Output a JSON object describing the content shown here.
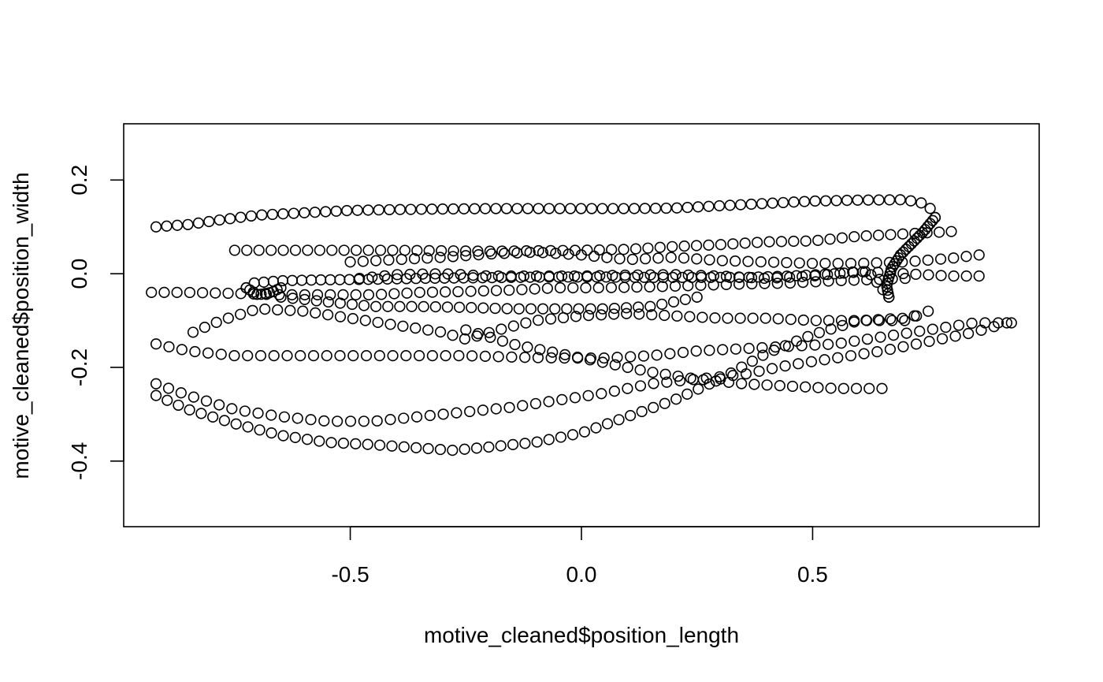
{
  "chart_data": {
    "type": "scatter",
    "title": "",
    "xlabel": "motive_cleaned$position_length",
    "ylabel": "motive_cleaned$position_width",
    "xlim": [
      -0.99,
      0.99
    ],
    "ylim": [
      -0.54,
      0.32
    ],
    "xticks": [
      -0.5,
      0.0,
      0.5
    ],
    "xtick_labels": [
      "-0.5",
      "0.0",
      "0.5"
    ],
    "yticks": [
      -0.4,
      -0.2,
      0.0,
      0.2
    ],
    "ytick_labels": [
      "-0.4",
      "-0.2",
      "0.0",
      "0.2"
    ],
    "grid": false,
    "marker": "open-circle",
    "color": "#000000",
    "tracks": [
      {
        "x": [
          -0.92,
          -0.85,
          -0.78,
          -0.7,
          -0.6,
          -0.5,
          -0.4,
          -0.3,
          -0.2,
          -0.1,
          0.0,
          0.1,
          0.2,
          0.3,
          0.4,
          0.5,
          0.6,
          0.7,
          0.74,
          0.76,
          0.765
        ],
        "y": [
          0.1,
          0.105,
          0.115,
          0.125,
          0.13,
          0.135,
          0.137,
          0.138,
          0.139,
          0.139,
          0.139,
          0.139,
          0.14,
          0.145,
          0.15,
          0.155,
          0.157,
          0.158,
          0.15,
          0.135,
          0.12
        ],
        "n": 75
      },
      {
        "x": [
          0.765,
          0.74,
          0.71,
          0.69
        ],
        "y": [
          0.12,
          0.09,
          0.06,
          0.04
        ],
        "n": 14
      },
      {
        "x": [
          0.69,
          0.67,
          0.66,
          0.665
        ],
        "y": [
          0.04,
          0.01,
          -0.025,
          -0.05
        ],
        "n": 14
      },
      {
        "x": [
          0.665,
          0.62,
          0.55,
          0.45,
          0.35,
          0.25,
          0.15,
          0.05,
          -0.05,
          -0.15,
          -0.25,
          -0.35,
          -0.45,
          -0.55,
          -0.65,
          -0.71,
          -0.725
        ],
        "y": [
          -0.05,
          0.005,
          0.0,
          -0.005,
          -0.008,
          -0.008,
          -0.008,
          -0.007,
          -0.007,
          -0.008,
          -0.009,
          -0.01,
          -0.012,
          -0.013,
          -0.015,
          -0.02,
          -0.03
        ],
        "n": 70
      },
      {
        "x": [
          -0.725,
          -0.7,
          -0.67,
          -0.65
        ],
        "y": [
          -0.03,
          -0.045,
          -0.04,
          -0.03
        ],
        "n": 10
      },
      {
        "x": [
          -0.75,
          -0.7,
          -0.6,
          -0.5,
          -0.4,
          -0.3,
          -0.2,
          -0.1,
          0.0,
          0.1,
          0.2,
          0.3,
          0.4,
          0.5,
          0.6,
          0.7,
          0.8
        ],
        "y": [
          0.05,
          0.05,
          0.05,
          0.05,
          0.05,
          0.049,
          0.048,
          0.049,
          0.05,
          0.052,
          0.058,
          0.062,
          0.068,
          0.07,
          0.08,
          0.085,
          0.09
        ],
        "n": 60
      },
      {
        "x": [
          -0.5,
          -0.4,
          -0.3,
          -0.2,
          -0.1,
          0.0,
          0.1,
          0.2,
          0.3,
          0.4,
          0.5,
          0.6,
          0.7,
          0.8,
          0.86
        ],
        "y": [
          0.025,
          0.03,
          0.035,
          0.042,
          0.046,
          0.04,
          0.03,
          0.035,
          0.028,
          0.025,
          0.022,
          0.022,
          0.025,
          0.033,
          0.04
        ],
        "n": 50
      },
      {
        "x": [
          -0.48,
          -0.4,
          -0.3,
          -0.2,
          -0.1,
          0.0,
          0.1,
          0.2,
          0.3,
          0.4,
          0.5,
          0.6,
          0.7,
          0.8,
          0.86
        ],
        "y": [
          -0.01,
          -0.002,
          0.0,
          -0.005,
          -0.005,
          -0.005,
          -0.003,
          -0.002,
          -0.005,
          -0.01,
          -0.005,
          0.005,
          0.0,
          -0.005,
          -0.005
        ],
        "n": 50
      },
      {
        "x": [
          -0.93,
          -0.85,
          -0.75,
          -0.65,
          -0.55,
          -0.45,
          -0.35,
          -0.25,
          -0.15,
          -0.05,
          0.05,
          0.15,
          0.25,
          0.35,
          0.45,
          0.55,
          0.65,
          0.7
        ],
        "y": [
          -0.04,
          -0.04,
          -0.042,
          -0.045,
          -0.045,
          -0.045,
          -0.04,
          -0.038,
          -0.035,
          -0.03,
          -0.03,
          -0.028,
          -0.025,
          -0.022,
          -0.02,
          -0.015,
          -0.012,
          -0.01
        ],
        "n": 60
      },
      {
        "x": [
          -0.65,
          -0.55,
          -0.45,
          -0.35,
          -0.25,
          -0.15,
          -0.05,
          0.05,
          0.15,
          0.2,
          0.25
        ],
        "y": [
          -0.05,
          -0.06,
          -0.07,
          -0.07,
          -0.072,
          -0.075,
          -0.075,
          -0.075,
          -0.07,
          -0.06,
          -0.05
        ],
        "n": 36
      },
      {
        "x": [
          -0.84,
          -0.78,
          -0.7,
          -0.6,
          -0.5,
          -0.4,
          -0.3,
          -0.25,
          -0.18,
          -0.1,
          0.0,
          0.1,
          0.2,
          0.3,
          0.4,
          0.5,
          0.6,
          0.7,
          0.75
        ],
        "y": [
          -0.125,
          -0.1,
          -0.075,
          -0.08,
          -0.095,
          -0.11,
          -0.125,
          -0.14,
          -0.12,
          -0.1,
          -0.09,
          -0.085,
          -0.09,
          -0.095,
          -0.095,
          -0.1,
          -0.1,
          -0.1,
          -0.08
        ],
        "n": 60
      },
      {
        "x": [
          -0.92,
          -0.85,
          -0.75,
          -0.65,
          -0.55,
          -0.45,
          -0.35,
          -0.25,
          -0.15,
          -0.05,
          0.05,
          0.15,
          0.25,
          0.35,
          0.45,
          0.55,
          0.65,
          0.75,
          0.85,
          0.93
        ],
        "y": [
          -0.15,
          -0.165,
          -0.175,
          -0.175,
          -0.175,
          -0.175,
          -0.175,
          -0.175,
          -0.178,
          -0.18,
          -0.18,
          -0.175,
          -0.165,
          -0.16,
          -0.155,
          -0.15,
          -0.135,
          -0.12,
          -0.105,
          -0.105
        ],
        "n": 66
      },
      {
        "x": [
          -0.25,
          -0.15,
          -0.05,
          0.05,
          0.15,
          0.25,
          0.35,
          0.45,
          0.55,
          0.65
        ],
        "y": [
          -0.12,
          -0.15,
          -0.17,
          -0.19,
          -0.21,
          -0.225,
          -0.235,
          -0.24,
          -0.245,
          -0.245
        ],
        "n": 34
      },
      {
        "x": [
          -0.92,
          -0.85,
          -0.75,
          -0.65,
          -0.55,
          -0.45,
          -0.35,
          -0.25,
          -0.15,
          -0.05,
          0.05,
          0.15,
          0.25,
          0.35,
          0.45,
          0.55,
          0.65,
          0.75,
          0.85,
          0.92
        ],
        "y": [
          -0.235,
          -0.26,
          -0.29,
          -0.305,
          -0.315,
          -0.315,
          -0.305,
          -0.295,
          -0.285,
          -0.27,
          -0.255,
          -0.235,
          -0.225,
          -0.215,
          -0.195,
          -0.18,
          -0.165,
          -0.145,
          -0.125,
          -0.105
        ],
        "n": 66
      },
      {
        "x": [
          -0.92,
          -0.85,
          -0.75,
          -0.65,
          -0.55,
          -0.45,
          -0.35,
          -0.28,
          -0.2,
          -0.1,
          0.0,
          0.1,
          0.2,
          0.3,
          0.4,
          0.5,
          0.6,
          0.7,
          0.72
        ],
        "y": [
          -0.26,
          -0.29,
          -0.32,
          -0.345,
          -0.36,
          -0.365,
          -0.372,
          -0.377,
          -0.37,
          -0.36,
          -0.34,
          -0.305,
          -0.27,
          -0.225,
          -0.17,
          -0.13,
          -0.1,
          -0.095,
          -0.09
        ],
        "n": 66
      }
    ]
  }
}
